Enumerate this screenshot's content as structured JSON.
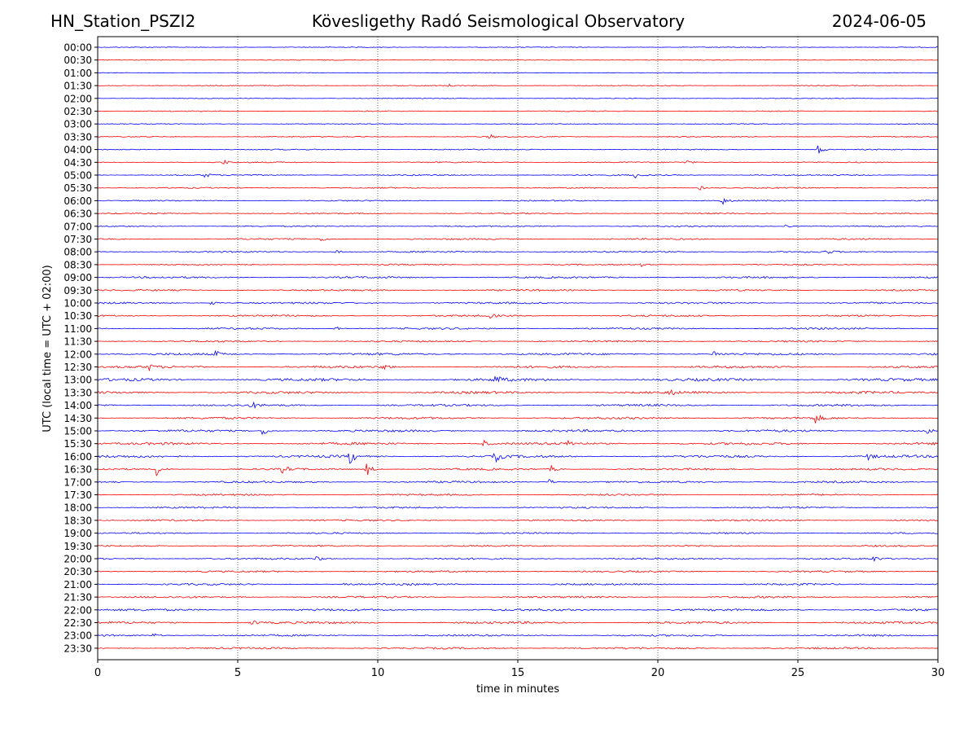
{
  "header": {
    "station": "HN_Station_PSZI2",
    "observatory": "Kövesligethy Radó Seismological Observatory",
    "date": "2024-06-05"
  },
  "chart_data": {
    "type": "line",
    "title": "Kövesligethy Radó Seismological Observatory",
    "xlabel": "time in minutes",
    "ylabel": "UTC (local time = UTC + 02:00)",
    "xlim": [
      0,
      30
    ],
    "xticks": [
      "0",
      "5",
      "10",
      "15",
      "20",
      "25",
      "30"
    ],
    "grid": "vertical dotted lines at 5-minute intervals",
    "series_colors": [
      "#0000ff",
      "#ff0000"
    ],
    "row_labels": [
      "00:00",
      "00:30",
      "01:00",
      "01:30",
      "02:00",
      "02:30",
      "03:00",
      "03:30",
      "04:00",
      "04:30",
      "05:00",
      "05:30",
      "06:00",
      "06:30",
      "07:00",
      "07:30",
      "08:00",
      "08:30",
      "09:00",
      "09:30",
      "10:00",
      "10:30",
      "11:00",
      "11:30",
      "12:00",
      "12:30",
      "13:00",
      "13:30",
      "14:00",
      "14:30",
      "15:00",
      "15:30",
      "16:00",
      "16:30",
      "17:00",
      "17:30",
      "18:00",
      "18:30",
      "19:00",
      "19:30",
      "20:00",
      "20:30",
      "21:00",
      "21:30",
      "22:00",
      "22:30",
      "23:00",
      "23:30"
    ],
    "noise_level": [
      0.3,
      0.3,
      0.3,
      0.4,
      0.3,
      0.4,
      0.4,
      0.5,
      0.5,
      0.6,
      0.7,
      0.6,
      0.6,
      0.6,
      0.6,
      0.8,
      0.8,
      0.7,
      1.0,
      0.9,
      1.0,
      1.0,
      1.0,
      0.9,
      1.2,
      1.3,
      1.6,
      1.4,
      1.2,
      1.2,
      1.3,
      1.4,
      1.4,
      1.1,
      1.1,
      0.9,
      0.9,
      0.9,
      0.8,
      0.8,
      0.9,
      0.9,
      1.0,
      1.1,
      1.2,
      1.3,
      1.0,
      1.0
    ],
    "events": [
      {
        "row": "01:30",
        "minute": 12.5,
        "amp": 2
      },
      {
        "row": "03:30",
        "minute": 14.0,
        "amp": 3
      },
      {
        "row": "04:00",
        "minute": 25.7,
        "amp": 7
      },
      {
        "row": "04:30",
        "minute": 4.5,
        "amp": 3
      },
      {
        "row": "04:30",
        "minute": 21.0,
        "amp": 3
      },
      {
        "row": "05:00",
        "minute": 3.8,
        "amp": 3
      },
      {
        "row": "05:00",
        "minute": 19.2,
        "amp": 3
      },
      {
        "row": "05:30",
        "minute": 21.5,
        "amp": 3
      },
      {
        "row": "06:00",
        "minute": 22.3,
        "amp": 5
      },
      {
        "row": "07:00",
        "minute": 24.5,
        "amp": 3
      },
      {
        "row": "07:30",
        "minute": 8.0,
        "amp": 3
      },
      {
        "row": "08:00",
        "minute": 8.5,
        "amp": 3
      },
      {
        "row": "08:00",
        "minute": 26.0,
        "amp": 3
      },
      {
        "row": "08:30",
        "minute": 19.4,
        "amp": 4
      },
      {
        "row": "10:00",
        "minute": 4.0,
        "amp": 4
      },
      {
        "row": "10:30",
        "minute": 14.0,
        "amp": 3
      },
      {
        "row": "11:00",
        "minute": 8.5,
        "amp": 4
      },
      {
        "row": "12:00",
        "minute": 4.2,
        "amp": 4
      },
      {
        "row": "12:00",
        "minute": 22.0,
        "amp": 4
      },
      {
        "row": "12:30",
        "minute": 1.8,
        "amp": 4
      },
      {
        "row": "12:30",
        "minute": 10.2,
        "amp": 4
      },
      {
        "row": "13:00",
        "minute": 14.2,
        "amp": 6
      },
      {
        "row": "13:30",
        "minute": 20.4,
        "amp": 4
      },
      {
        "row": "14:00",
        "minute": 5.5,
        "amp": 4
      },
      {
        "row": "14:30",
        "minute": 25.6,
        "amp": 7
      },
      {
        "row": "15:00",
        "minute": 5.9,
        "amp": 7
      },
      {
        "row": "15:00",
        "minute": 29.6,
        "amp": 4
      },
      {
        "row": "15:30",
        "minute": 13.8,
        "amp": 4
      },
      {
        "row": "15:30",
        "minute": 16.8,
        "amp": 4
      },
      {
        "row": "16:00",
        "minute": 9.0,
        "amp": 10
      },
      {
        "row": "16:00",
        "minute": 14.2,
        "amp": 7
      },
      {
        "row": "16:00",
        "minute": 27.5,
        "amp": 4
      },
      {
        "row": "16:30",
        "minute": 2.1,
        "amp": 8
      },
      {
        "row": "16:30",
        "minute": 6.6,
        "amp": 5
      },
      {
        "row": "16:30",
        "minute": 9.6,
        "amp": 9
      },
      {
        "row": "16:30",
        "minute": 16.2,
        "amp": 4
      },
      {
        "row": "17:00",
        "minute": 16.1,
        "amp": 4
      },
      {
        "row": "20:00",
        "minute": 7.8,
        "amp": 4
      },
      {
        "row": "20:00",
        "minute": 27.7,
        "amp": 3
      },
      {
        "row": "21:00",
        "minute": 8.7,
        "amp": 4
      },
      {
        "row": "22:30",
        "minute": 5.5,
        "amp": 4
      },
      {
        "row": "23:00",
        "minute": 2.0,
        "amp": 3
      }
    ]
  }
}
